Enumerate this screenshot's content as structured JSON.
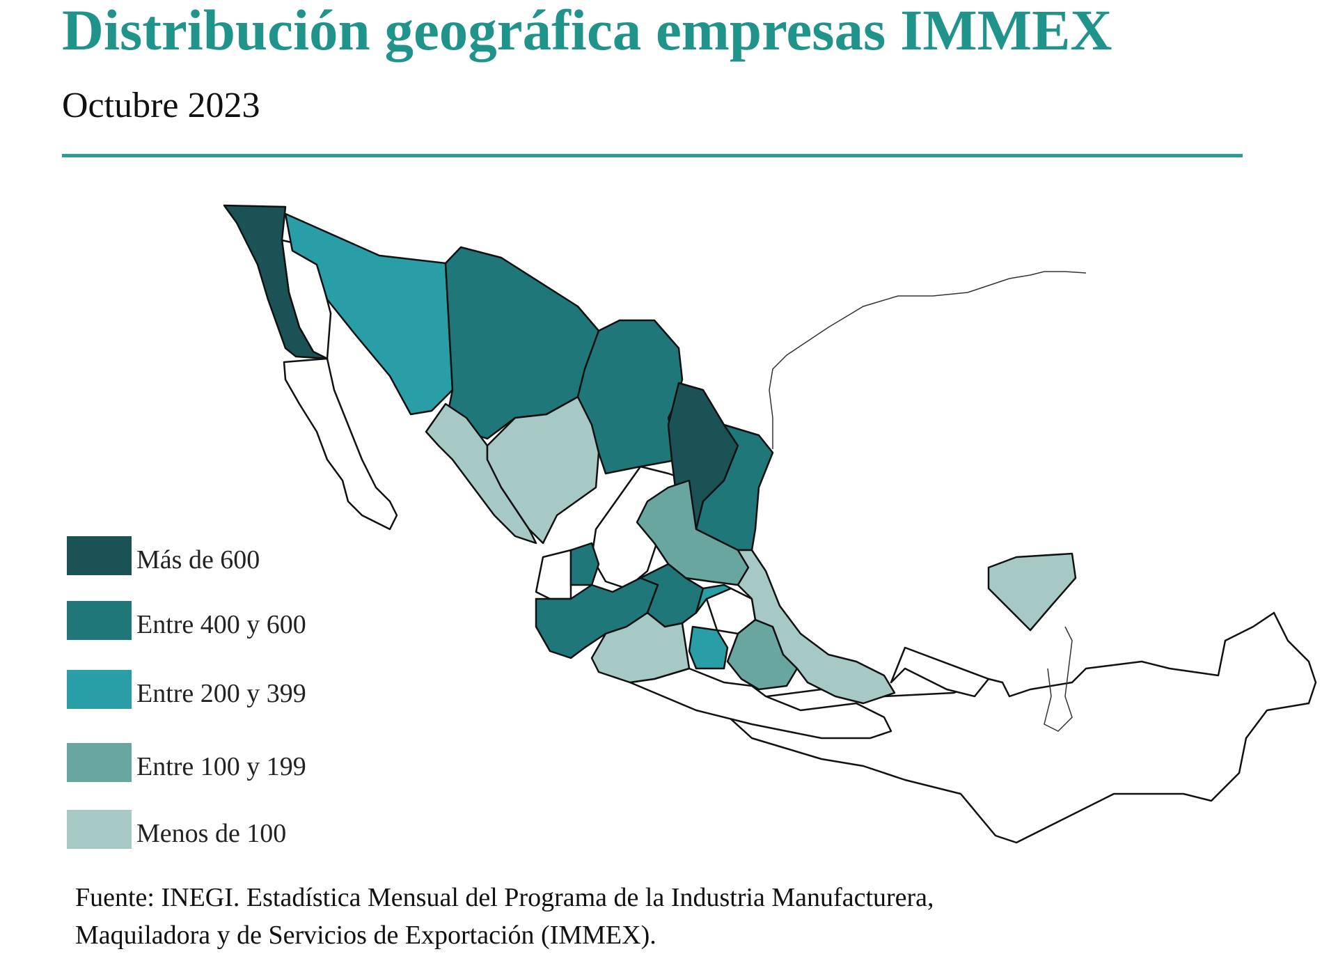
{
  "header": {
    "title": "Distribución geográfica empresas IMMEX",
    "subtitle": "Octubre 2023"
  },
  "colors": {
    "title": "#20938b",
    "rule": "#2d9c95",
    "mas_600": "#1a5255",
    "entre_400_600": "#1f777a",
    "entre_200_399": "#2a9ea6",
    "entre_100_199": "#6aa6a0",
    "menos_100": "#a6c9c6",
    "sin_datos": "#ffffff"
  },
  "legend": {
    "items": [
      {
        "label": "Más de 600",
        "color": "#1a5255"
      },
      {
        "label": "Entre 400 y 600",
        "color": "#1f777a"
      },
      {
        "label": "Entre 200 y 399",
        "color": "#2a9ea6"
      },
      {
        "label": "Entre 100 y 199",
        "color": "#6aa6a0"
      },
      {
        "label": "Menos de 100",
        "color": "#a6c9c6"
      }
    ]
  },
  "map": {
    "states": [
      {
        "id": "baja-california",
        "category": "mas_600"
      },
      {
        "id": "sonora",
        "category": "entre_200_399"
      },
      {
        "id": "chihuahua",
        "category": "entre_400_600"
      },
      {
        "id": "coahuila",
        "category": "entre_400_600"
      },
      {
        "id": "nuevo-leon",
        "category": "mas_600"
      },
      {
        "id": "tamaulipas",
        "category": "entre_400_600"
      },
      {
        "id": "sinaloa",
        "category": "menos_100"
      },
      {
        "id": "durango",
        "category": "menos_100"
      },
      {
        "id": "san-luis-potosi",
        "category": "entre_100_199"
      },
      {
        "id": "aguascalientes",
        "category": "entre_400_600"
      },
      {
        "id": "jalisco",
        "category": "entre_400_600"
      },
      {
        "id": "guanajuato",
        "category": "entre_400_600"
      },
      {
        "id": "queretaro",
        "category": "entre_200_399"
      },
      {
        "id": "michoacan",
        "category": "menos_100"
      },
      {
        "id": "estado-de-mexico",
        "category": "entre_200_399"
      },
      {
        "id": "puebla",
        "category": "entre_100_199"
      },
      {
        "id": "veracruz",
        "category": "menos_100"
      },
      {
        "id": "tlaxcala",
        "category": "entre_100_199"
      },
      {
        "id": "yucatan",
        "category": "menos_100"
      }
    ]
  },
  "source": {
    "prefix": "Fuente: ",
    "org": "INEGI",
    "line1_rest": ". Estadística Mensual del Programa de la Industria Manufacturera,",
    "line2_a": "Maquiladora y de Servicios de Exportación (",
    "program": "IMMEX",
    "line2_b": ")."
  }
}
